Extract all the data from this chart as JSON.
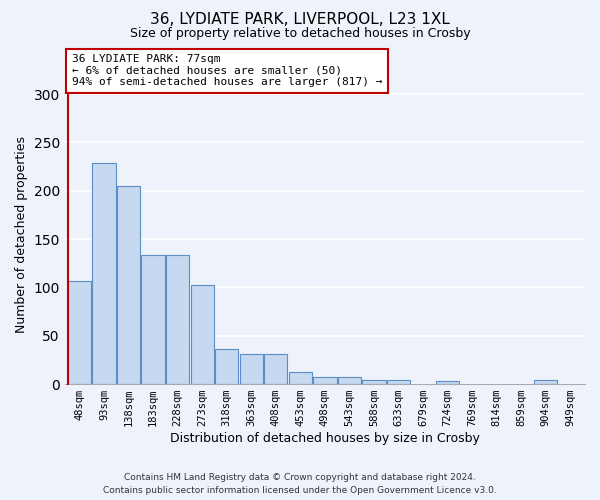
{
  "title_line1": "36, LYDIATE PARK, LIVERPOOL, L23 1XL",
  "title_line2": "Size of property relative to detached houses in Crosby",
  "xlabel": "Distribution of detached houses by size in Crosby",
  "ylabel": "Number of detached properties",
  "footer_line1": "Contains HM Land Registry data © Crown copyright and database right 2024.",
  "footer_line2": "Contains public sector information licensed under the Open Government Licence v3.0.",
  "annotation_line1": "36 LYDIATE PARK: 77sqm",
  "annotation_line2": "← 6% of detached houses are smaller (50)",
  "annotation_line3": "94% of semi-detached houses are larger (817) →",
  "categories": [
    "48sqm",
    "93sqm",
    "138sqm",
    "183sqm",
    "228sqm",
    "273sqm",
    "318sqm",
    "363sqm",
    "408sqm",
    "453sqm",
    "498sqm",
    "543sqm",
    "588sqm",
    "633sqm",
    "679sqm",
    "724sqm",
    "769sqm",
    "814sqm",
    "859sqm",
    "904sqm",
    "949sqm"
  ],
  "values": [
    107,
    229,
    205,
    134,
    134,
    103,
    36,
    31,
    31,
    12,
    7,
    7,
    4,
    4,
    0,
    3,
    0,
    0,
    0,
    4,
    0
  ],
  "bar_color": "#c6d9f0",
  "bar_edge_color": "#5b8ec4",
  "marker_color": "#c00000",
  "background_color": "#eef2fb",
  "grid_color": "#ffffff",
  "ylim": [
    0,
    310
  ],
  "yticks": [
    0,
    50,
    100,
    150,
    200,
    250,
    300
  ]
}
